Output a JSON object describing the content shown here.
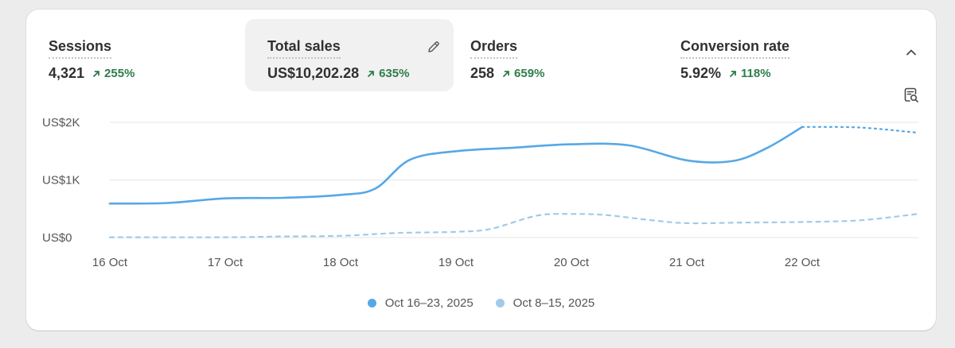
{
  "metrics": [
    {
      "label": "Sessions",
      "value": "4,321",
      "change": "255%"
    },
    {
      "label": "Total sales",
      "value": "US$10,202.28",
      "change": "635%"
    },
    {
      "label": "Orders",
      "value": "258",
      "change": "659%"
    },
    {
      "label": "Conversion rate",
      "value": "5.92%",
      "change": "118%"
    }
  ],
  "colors": {
    "current": "#56a8e6",
    "previous": "#9fcbe8",
    "positive": "#2e7d4a"
  },
  "icons": [
    "pencil-icon",
    "chevron-up-icon",
    "explore-report-icon",
    "arrow-up-right-icon"
  ],
  "chart_data": {
    "type": "line",
    "title": "",
    "xlabel": "",
    "ylabel": "",
    "ylim": [
      0,
      2000
    ],
    "y_ticks": [
      "US$0",
      "US$1K",
      "US$2K"
    ],
    "categories": [
      "16 Oct",
      "17 Oct",
      "18 Oct",
      "19 Oct",
      "20 Oct",
      "21 Oct",
      "22 Oct"
    ],
    "grid": true,
    "legend_position": "bottom",
    "series": [
      {
        "name": "Oct 16–23, 2025",
        "x": [
          0,
          0.5,
          1,
          1.5,
          2,
          2.3,
          2.6,
          3,
          3.5,
          4,
          4.5,
          5,
          5.4,
          5.7,
          6,
          6.5,
          7
        ],
        "values": [
          590,
          600,
          680,
          690,
          740,
          850,
          1350,
          1500,
          1560,
          1620,
          1600,
          1340,
          1330,
          1560,
          1920,
          1910,
          1820
        ],
        "projected_from_x": 6
      },
      {
        "name": "Oct 8–15, 2025",
        "x": [
          0,
          1,
          1.5,
          2,
          2.5,
          3,
          3.3,
          3.7,
          4,
          4.3,
          4.7,
          5,
          5.5,
          6,
          6.5,
          7
        ],
        "values": [
          5,
          5,
          20,
          30,
          80,
          100,
          150,
          380,
          410,
          390,
          300,
          250,
          260,
          270,
          300,
          410
        ]
      }
    ]
  },
  "legend": [
    {
      "label": "Oct 16–23, 2025"
    },
    {
      "label": "Oct 8–15, 2025"
    }
  ]
}
